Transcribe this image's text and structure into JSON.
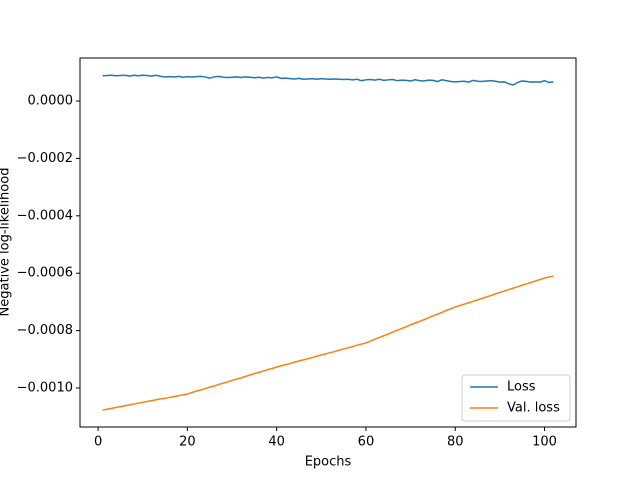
{
  "chart_data": {
    "type": "line",
    "xlabel": "Epochs",
    "ylabel": "Negative log-likelihood",
    "x": [
      1,
      2,
      3,
      4,
      5,
      6,
      7,
      8,
      9,
      10,
      11,
      12,
      13,
      14,
      15,
      16,
      17,
      18,
      19,
      20,
      21,
      22,
      23,
      24,
      25,
      26,
      27,
      28,
      29,
      30,
      31,
      32,
      33,
      34,
      35,
      36,
      37,
      38,
      39,
      40,
      41,
      42,
      43,
      44,
      45,
      46,
      47,
      48,
      49,
      50,
      51,
      52,
      53,
      54,
      55,
      56,
      57,
      58,
      59,
      60,
      61,
      62,
      63,
      64,
      65,
      66,
      67,
      68,
      69,
      70,
      71,
      72,
      73,
      74,
      75,
      76,
      77,
      78,
      79,
      80,
      81,
      82,
      83,
      84,
      85,
      86,
      87,
      88,
      89,
      90,
      91,
      92,
      93,
      94,
      95,
      96,
      97,
      98,
      99,
      100,
      101,
      102
    ],
    "series": [
      {
        "name": "Loss",
        "color": "#1f77b4",
        "values": [
          8.8e-05,
          8.9e-05,
          9e-05,
          8.8e-05,
          8.9e-05,
          9e-05,
          8.7e-05,
          9e-05,
          8.8e-05,
          9e-05,
          8.9e-05,
          8.7e-05,
          9e-05,
          8.6e-05,
          8.4e-05,
          8.5e-05,
          8.4e-05,
          8.6e-05,
          8.3e-05,
          8.5e-05,
          8.4e-05,
          8.5e-05,
          8.6e-05,
          8.4e-05,
          8e-05,
          8.4e-05,
          8.6e-05,
          8.3e-05,
          8.2e-05,
          8.3e-05,
          8.4e-05,
          8.2e-05,
          8.4e-05,
          8.3e-05,
          8.1e-05,
          8.3e-05,
          8e-05,
          8.2e-05,
          8.1e-05,
          8.4e-05,
          7.9e-05,
          8e-05,
          7.8e-05,
          7.7e-05,
          7.9e-05,
          7.6e-05,
          7.7e-05,
          7.8e-05,
          7.6e-05,
          7.8e-05,
          7.7e-05,
          7.6e-05,
          7.7e-05,
          7.6e-05,
          7.5e-05,
          7.6e-05,
          7.4e-05,
          7.6e-05,
          7.1e-05,
          7.4e-05,
          7.5e-05,
          7.3e-05,
          7.6e-05,
          7.2e-05,
          7.4e-05,
          7.5e-05,
          7.1e-05,
          7.3e-05,
          7.2e-05,
          7e-05,
          7.4e-05,
          7.1e-05,
          7e-05,
          7.3e-05,
          7.2e-05,
          6.8e-05,
          7.4e-05,
          7.1e-05,
          6.8e-05,
          6.7e-05,
          6.8e-05,
          6.9e-05,
          6.6e-05,
          7.2e-05,
          6.9e-05,
          6.8e-05,
          7e-05,
          7.1e-05,
          6.9e-05,
          6.6e-05,
          6.7e-05,
          6e-05,
          5.6e-05,
          6.5e-05,
          7e-05,
          6.8e-05,
          6.6e-05,
          6.7e-05,
          6.6e-05,
          7.1e-05,
          6.5e-05,
          6.7e-05
        ]
      },
      {
        "name": "Val. loss",
        "color": "#ff7f0e",
        "values": [
          -0.001077,
          -0.001074,
          -0.001071,
          -0.001068,
          -0.001065,
          -0.001062,
          -0.001059,
          -0.001056,
          -0.001053,
          -0.00105,
          -0.001047,
          -0.001044,
          -0.001041,
          -0.001038,
          -0.001036,
          -0.001033,
          -0.00103,
          -0.001027,
          -0.001024,
          -0.001021,
          -0.001016,
          -0.001011,
          -0.001007,
          -0.001002,
          -0.000997,
          -0.000993,
          -0.000988,
          -0.000983,
          -0.000979,
          -0.000974,
          -0.000969,
          -0.000965,
          -0.00096,
          -0.000955,
          -0.00095,
          -0.000946,
          -0.000941,
          -0.000936,
          -0.000932,
          -0.000927,
          -0.000923,
          -0.000919,
          -0.000915,
          -0.00091,
          -0.000906,
          -0.000902,
          -0.000898,
          -0.000894,
          -0.000889,
          -0.000885,
          -0.000881,
          -0.000877,
          -0.000873,
          -0.000868,
          -0.000864,
          -0.00086,
          -0.000856,
          -0.000851,
          -0.000847,
          -0.000843,
          -0.000837,
          -0.00083,
          -0.000824,
          -0.000818,
          -0.000812,
          -0.000805,
          -0.000799,
          -0.000793,
          -0.000787,
          -0.00078,
          -0.000774,
          -0.000768,
          -0.000762,
          -0.000755,
          -0.000749,
          -0.000743,
          -0.000737,
          -0.00073,
          -0.000724,
          -0.000718,
          -0.000713,
          -0.000708,
          -0.000703,
          -0.000698,
          -0.000693,
          -0.000688,
          -0.000683,
          -0.000678,
          -0.000672,
          -0.000667,
          -0.000662,
          -0.000657,
          -0.000652,
          -0.000647,
          -0.000642,
          -0.000637,
          -0.000632,
          -0.000627,
          -0.000622,
          -0.000617,
          -0.000613,
          -0.00061
        ]
      }
    ],
    "xlim": [
      -4.05,
      107.05
    ],
    "xticks": [
      0,
      20,
      40,
      60,
      80,
      100
    ],
    "ylim": [
      -0.001136,
      0.00015
    ],
    "yticks": [
      {
        "value": 0,
        "label": "0.0000"
      },
      {
        "value": -0.0002,
        "label": "−0.0002"
      },
      {
        "value": -0.0004,
        "label": "−0.0004"
      },
      {
        "value": -0.0006,
        "label": "−0.0006"
      },
      {
        "value": -0.0008,
        "label": "−0.0008"
      },
      {
        "value": -0.001,
        "label": "−0.0010"
      }
    ],
    "legend": "lower right"
  }
}
